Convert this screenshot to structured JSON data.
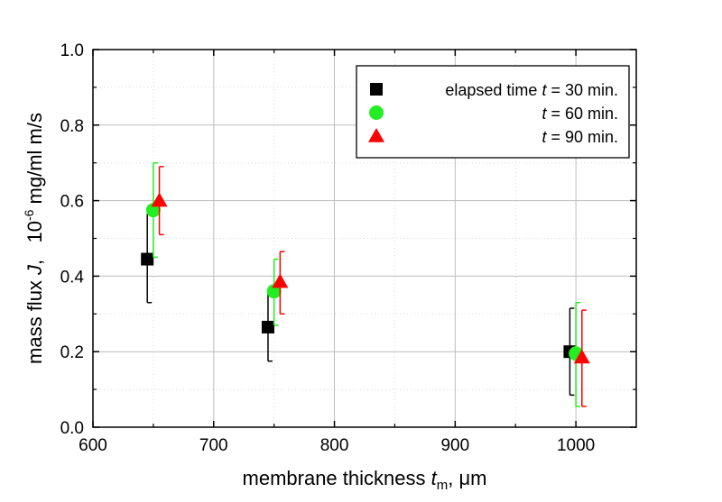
{
  "chart_data": {
    "type": "scatter",
    "xlabel": {
      "main": "membrane thickness ",
      "var": "t",
      "sub": "m",
      "unit": ", μm"
    },
    "ylabel": {
      "main": "mass flux ",
      "var": "J",
      "unit_pre": ",   10",
      "sup": "-6",
      "unit": " mg/ml m/s"
    },
    "xlim": [
      600,
      1050
    ],
    "ylim": [
      0.0,
      1.0
    ],
    "x_ticks": [
      600,
      700,
      800,
      900,
      1000
    ],
    "x_tick_labels": [
      "600",
      "700",
      "800",
      "900",
      "1000"
    ],
    "y_ticks": [
      0.0,
      0.2,
      0.4,
      0.6,
      0.8,
      1.0
    ],
    "y_tick_labels": [
      "0.0",
      "0.2",
      "0.4",
      "0.6",
      "0.8",
      "1.0"
    ],
    "grid": true,
    "legend_position": "top-right",
    "series": [
      {
        "name": "t = 30 min.",
        "legend_prefix": "elapsed time ",
        "legend_var": "t",
        "legend_suffix": " = 30 min.",
        "marker": "square",
        "color": "#000000",
        "points": [
          {
            "x": 645,
            "y": 0.445,
            "err_low": 0.33,
            "err_high": 0.565
          },
          {
            "x": 745,
            "y": 0.265,
            "err_low": 0.175,
            "err_high": 0.355
          },
          {
            "x": 995,
            "y": 0.2,
            "err_low": 0.085,
            "err_high": 0.315
          }
        ]
      },
      {
        "name": "t = 60 min.",
        "legend_prefix": "",
        "legend_var": "t",
        "legend_suffix": " = 60 min.",
        "marker": "circle",
        "color": "#22ee22",
        "points": [
          {
            "x": 650,
            "y": 0.575,
            "err_low": 0.45,
            "err_high": 0.7
          },
          {
            "x": 750,
            "y": 0.36,
            "err_low": 0.27,
            "err_high": 0.445
          },
          {
            "x": 1000,
            "y": 0.195,
            "err_low": 0.055,
            "err_high": 0.33
          }
        ]
      },
      {
        "name": "t = 90 min.",
        "legend_prefix": "",
        "legend_var": "t",
        "legend_suffix": " = 90 min.",
        "marker": "triangle",
        "color": "#ff0000",
        "points": [
          {
            "x": 655,
            "y": 0.6,
            "err_low": 0.51,
            "err_high": 0.69
          },
          {
            "x": 755,
            "y": 0.385,
            "err_low": 0.3,
            "err_high": 0.465
          },
          {
            "x": 1005,
            "y": 0.185,
            "err_low": 0.055,
            "err_high": 0.31
          }
        ]
      }
    ]
  }
}
